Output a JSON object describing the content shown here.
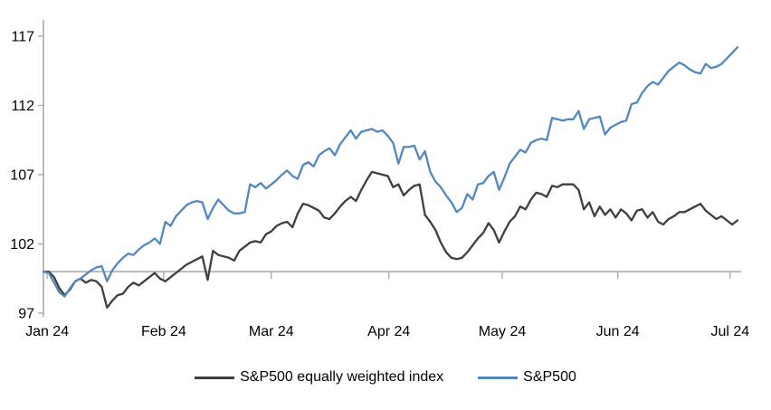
{
  "figure": {
    "background": "#ffffff",
    "text_color": "#000000",
    "axis_color": "#a6a6a6"
  },
  "chart_data": {
    "type": "line",
    "title": "",
    "xlabel": "",
    "ylabel": "",
    "grid": false,
    "legend_position": "bottom",
    "x_axis": {
      "categories": [
        "Jan 24",
        "Feb 24",
        "Mar 24",
        "Apr 24",
        "May 24",
        "Jun 24",
        "Jul 24"
      ],
      "tick_positions": [
        0.7,
        22.7,
        43.0,
        65.2,
        86.6,
        108.4,
        129.6
      ],
      "axis_cross_value": 100
    },
    "y_axis": {
      "ticks": [
        97,
        102,
        107,
        112,
        117
      ],
      "ylim": [
        96.5,
        118.2
      ]
    },
    "series": [
      {
        "name": "S&P500 equally weighted index",
        "color": "#3f3f3f",
        "values": [
          100.0,
          100.0,
          99.6,
          98.8,
          98.3,
          98.7,
          99.3,
          99.5,
          99.2,
          99.4,
          99.3,
          98.9,
          97.4,
          97.9,
          98.3,
          98.4,
          98.9,
          99.2,
          99.0,
          99.3,
          99.6,
          99.9,
          99.5,
          99.3,
          99.6,
          99.9,
          100.2,
          100.5,
          100.7,
          100.9,
          101.1,
          99.4,
          101.5,
          101.2,
          101.1,
          101.0,
          100.8,
          101.5,
          101.8,
          102.1,
          102.2,
          102.1,
          102.7,
          102.9,
          103.3,
          103.5,
          103.6,
          103.2,
          104.2,
          104.9,
          104.8,
          104.6,
          104.4,
          103.9,
          103.8,
          104.2,
          104.7,
          105.1,
          105.4,
          105.1,
          105.9,
          106.6,
          107.2,
          107.1,
          107.0,
          106.9,
          106.1,
          106.3,
          105.5,
          105.9,
          106.2,
          106.3,
          104.1,
          103.6,
          103.0,
          102.1,
          101.4,
          101.0,
          100.9,
          101.0,
          101.4,
          101.9,
          102.4,
          102.8,
          103.5,
          103.0,
          102.1,
          102.9,
          103.6,
          104.0,
          104.7,
          104.5,
          105.2,
          105.7,
          105.6,
          105.4,
          106.2,
          106.1,
          106.3,
          106.3,
          106.3,
          105.9,
          104.5,
          105.0,
          104.0,
          104.7,
          104.1,
          104.5,
          103.9,
          104.5,
          104.2,
          103.7,
          104.4,
          104.5,
          103.9,
          104.3,
          103.6,
          103.4,
          103.8,
          104.0,
          104.3,
          104.3,
          104.5,
          104.7,
          104.9,
          104.4,
          104.1,
          103.8,
          104.0,
          103.7,
          103.4,
          103.7
        ]
      },
      {
        "name": "S&P500",
        "color": "#5388be",
        "values": [
          100.0,
          99.9,
          99.2,
          98.5,
          98.2,
          98.8,
          99.3,
          99.5,
          99.8,
          100.1,
          100.3,
          100.4,
          99.3,
          100.1,
          100.6,
          101.0,
          101.3,
          101.2,
          101.6,
          101.9,
          102.1,
          102.4,
          102.0,
          103.6,
          103.3,
          104.0,
          104.4,
          104.8,
          105.0,
          105.1,
          105.0,
          103.8,
          104.6,
          105.2,
          104.8,
          104.4,
          104.2,
          104.2,
          104.3,
          106.3,
          106.1,
          106.4,
          106.0,
          106.3,
          106.6,
          107.0,
          107.3,
          106.9,
          106.7,
          107.7,
          107.9,
          107.6,
          108.4,
          108.7,
          108.9,
          108.4,
          109.2,
          109.7,
          110.2,
          109.6,
          110.1,
          110.2,
          110.3,
          110.1,
          110.2,
          109.8,
          109.3,
          107.8,
          109.0,
          109.0,
          109.1,
          108.1,
          108.7,
          107.2,
          106.5,
          106.1,
          105.5,
          105.0,
          104.3,
          104.6,
          105.6,
          105.2,
          106.3,
          106.4,
          106.9,
          107.2,
          105.9,
          106.8,
          107.8,
          108.3,
          108.8,
          108.6,
          109.3,
          109.5,
          109.6,
          109.5,
          111.1,
          111.0,
          110.9,
          111.0,
          111.0,
          111.6,
          110.3,
          111.0,
          111.1,
          111.2,
          109.9,
          110.4,
          110.6,
          110.8,
          110.9,
          112.1,
          112.2,
          112.9,
          113.4,
          113.7,
          113.5,
          114.0,
          114.5,
          114.8,
          115.1,
          114.9,
          114.6,
          114.4,
          114.3,
          115.0,
          114.7,
          114.8,
          115.0,
          115.4,
          115.8,
          116.2
        ]
      }
    ]
  }
}
